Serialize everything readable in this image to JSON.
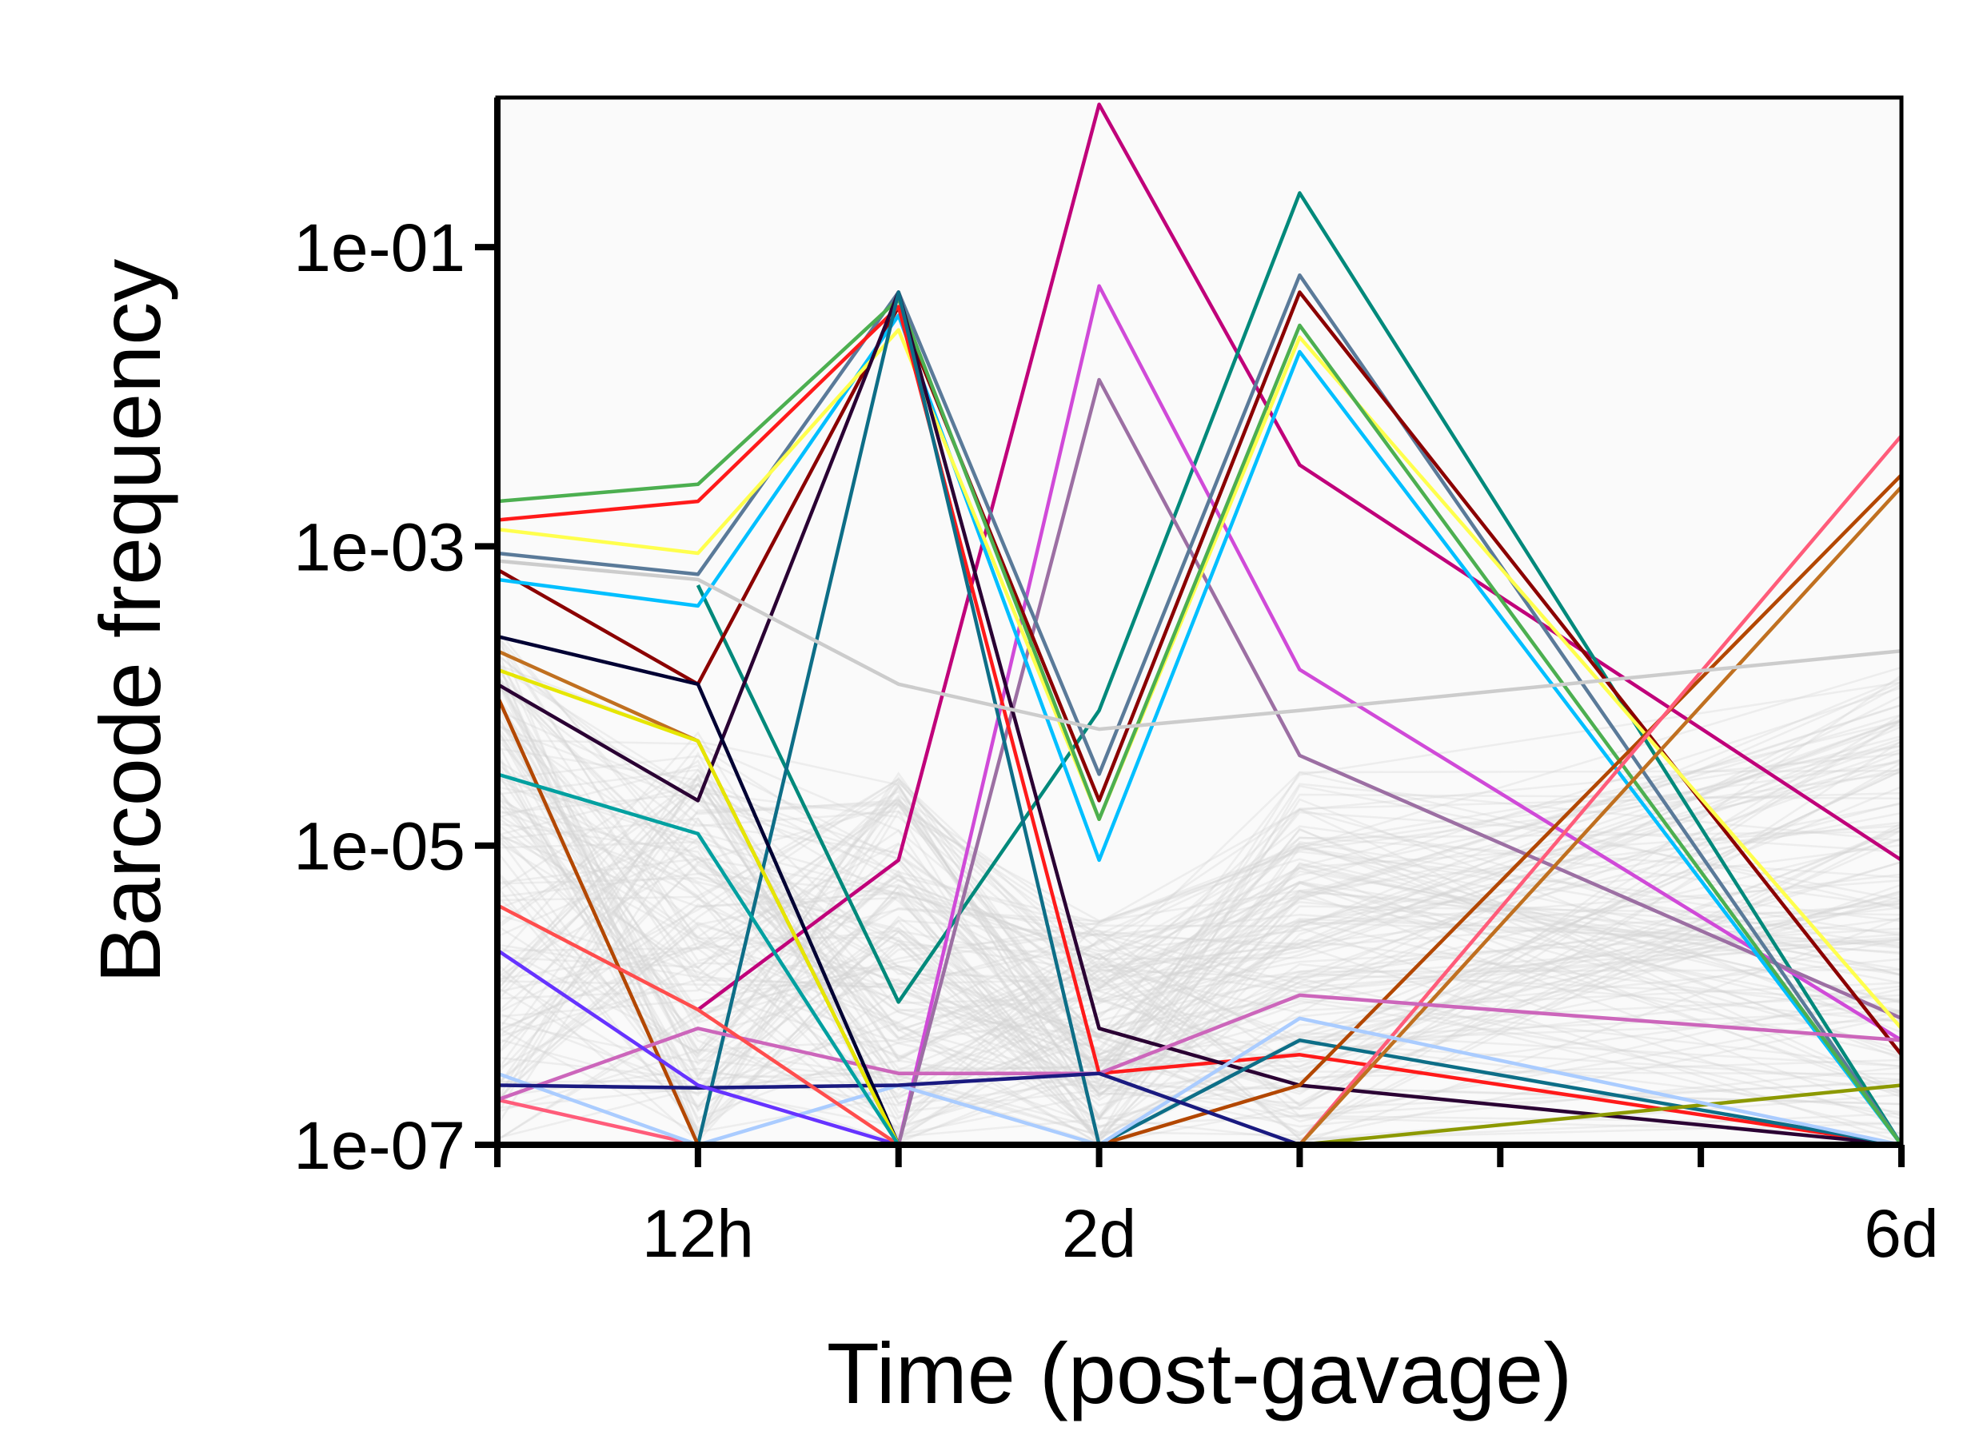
{
  "chart_data": {
    "type": "line",
    "title": "",
    "xlabel": "Time (post-gavage)",
    "ylabel": "Barcode frequency",
    "y_scale": "log",
    "ylim": [
      1e-07,
      1
    ],
    "xlim": [
      0,
      7
    ],
    "x_ticks": [
      0,
      1,
      2,
      3,
      4,
      5,
      6,
      7
    ],
    "x_tick_labels": [
      "",
      "12h",
      "",
      "2d",
      "",
      "",
      "",
      "6d"
    ],
    "y_ticks": [
      1e-07,
      1e-05,
      0.001,
      0.1
    ],
    "y_tick_labels": [
      "1e-07",
      "1e-05",
      "1e-03",
      "1e-01"
    ],
    "grid": false,
    "plot_background": "#fafafa",
    "background_series_color": "#d3d3d3",
    "background_series_count": 150,
    "series": [
      {
        "color": "#c0007a",
        "values": [
          null,
          8e-07,
          8e-06,
          0.9,
          0.0035,
          null,
          null,
          8e-06
        ]
      },
      {
        "color": "#00897b",
        "values": [
          null,
          0.00055,
          9e-07,
          8e-05,
          0.23,
          null,
          null,
          1e-07
        ]
      },
      {
        "color": "#d04ad8",
        "values": [
          null,
          null,
          1e-07,
          0.055,
          0.00015,
          null,
          null,
          5e-07
        ]
      },
      {
        "color": "#9c6fa3",
        "values": [
          null,
          null,
          1e-07,
          0.013,
          4e-05,
          null,
          null,
          7e-07
        ]
      },
      {
        "color": "#5a7a99",
        "values": [
          0.0009,
          0.00065,
          0.05,
          3e-05,
          0.065,
          null,
          null,
          1e-07
        ]
      },
      {
        "color": "#8b0000",
        "values": [
          0.0007,
          0.00012,
          0.04,
          2e-05,
          0.05,
          null,
          null,
          4e-07
        ]
      },
      {
        "color": "#00bfff",
        "values": [
          0.0006,
          0.0004,
          0.035,
          8e-06,
          0.02,
          null,
          null,
          1e-07
        ]
      },
      {
        "color": "#ffff4d",
        "values": [
          0.0013,
          0.0009,
          0.028,
          1.5e-05,
          0.025,
          null,
          null,
          6e-07
        ]
      },
      {
        "color": "#4caf50",
        "values": [
          0.002,
          0.0026,
          0.045,
          1.5e-05,
          0.03,
          null,
          null,
          1e-07
        ]
      },
      {
        "color": "#ff1a1a",
        "values": [
          0.0015,
          0.002,
          0.04,
          3e-07,
          4e-07,
          null,
          null,
          1e-07
        ]
      },
      {
        "color": "#2a0033",
        "values": [
          0.00012,
          2e-05,
          0.05,
          6e-07,
          2.5e-07,
          null,
          null,
          1e-07
        ]
      },
      {
        "color": "#0d6e87",
        "values": [
          1e-07,
          1e-07,
          0.05,
          1e-07,
          5e-07,
          null,
          null,
          1e-07
        ]
      },
      {
        "color": "#b34700",
        "values": [
          0.0001,
          1e-07,
          1e-07,
          1e-07,
          2.5e-07,
          null,
          null,
          0.003
        ]
      },
      {
        "color": "#ff5c7a",
        "values": [
          2e-07,
          1e-07,
          1e-07,
          1e-07,
          1e-07,
          null,
          null,
          0.0055
        ]
      },
      {
        "color": "#c07020",
        "values": [
          0.0002,
          5e-05,
          1e-07,
          1e-07,
          1e-07,
          null,
          null,
          0.0025
        ]
      },
      {
        "color": "#8c9900",
        "values": [
          1e-07,
          1e-07,
          1e-07,
          1e-07,
          1e-07,
          null,
          null,
          2.5e-07
        ]
      },
      {
        "color": "#cc66bb",
        "values": [
          2e-07,
          6e-07,
          3e-07,
          3e-07,
          1e-06,
          null,
          null,
          5e-07
        ]
      },
      {
        "color": "#aaccff",
        "values": [
          3e-07,
          1e-07,
          2.5e-07,
          1e-07,
          7e-07,
          null,
          null,
          1e-07
        ]
      },
      {
        "color": "#1a1a80",
        "values": [
          2.5e-07,
          2.4e-07,
          2.5e-07,
          3e-07,
          1e-07,
          null,
          null,
          1e-07
        ]
      },
      {
        "color": "#000033",
        "values": [
          0.00025,
          0.00012,
          1e-07,
          1e-07,
          1e-07,
          null,
          null,
          1e-07
        ]
      },
      {
        "color": "#6633ff",
        "values": [
          2e-06,
          2.5e-07,
          1e-07,
          1e-07,
          1e-07,
          null,
          null,
          1e-07
        ]
      },
      {
        "color": "#ff4d4d",
        "values": [
          4e-06,
          8e-07,
          1e-07,
          1e-07,
          1e-07,
          null,
          null,
          1e-07
        ]
      },
      {
        "color": "#e6e600",
        "values": [
          0.00015,
          5e-05,
          1e-07,
          1e-07,
          1e-07,
          null,
          null,
          1e-07
        ]
      },
      {
        "color": "#00a0a0",
        "values": [
          3e-05,
          1.2e-05,
          1e-07,
          1e-07,
          1e-07,
          null,
          null,
          1e-07
        ]
      },
      {
        "color": "#cccccc",
        "values": [
          0.0008,
          0.0006,
          0.00012,
          6e-05,
          8e-05,
          null,
          null,
          0.0002
        ]
      }
    ]
  }
}
